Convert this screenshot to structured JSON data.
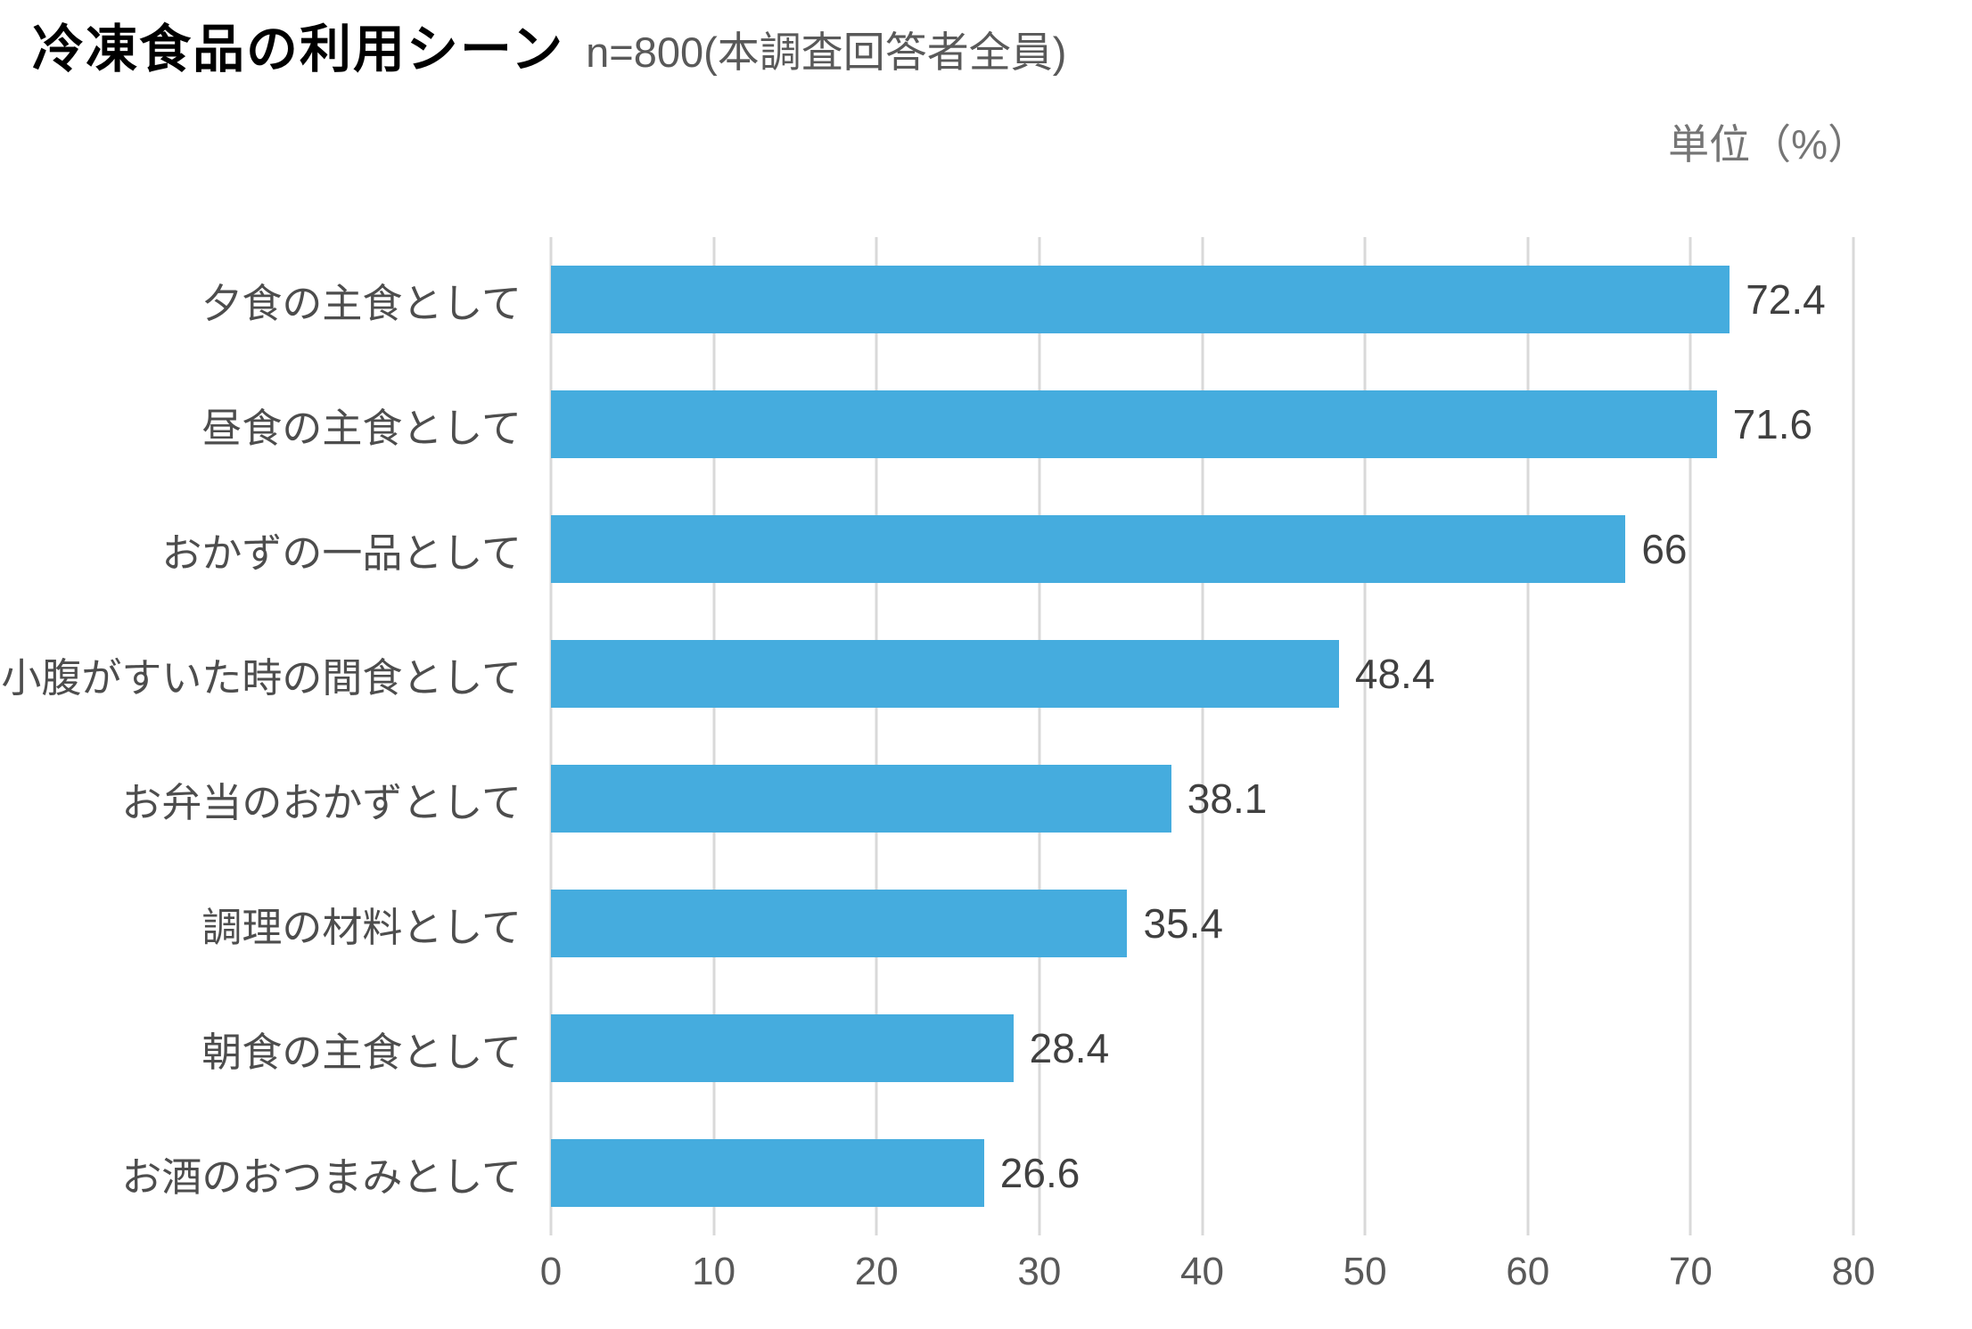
{
  "header": {
    "title": "冷凍食品の利用シーン",
    "subtitle": "n=800(本調査回答者全員)",
    "unit_label": "単位（%）"
  },
  "colors": {
    "bar": "#45ACDE",
    "grid": "#D9D9D9",
    "title_text": "#000000",
    "subtitle_text": "#595959",
    "category_text": "#4D4D4D",
    "value_text": "#404040",
    "tick_text": "#595959",
    "background": "#FFFFFF"
  },
  "chart_data": {
    "type": "bar",
    "orientation": "horizontal",
    "title": "冷凍食品の利用シーン",
    "subtitle": "n=800(本調査回答者全員)",
    "unit": "%",
    "categories": [
      "夕食の主食として",
      "昼食の主食として",
      "おかずの一品として",
      "小腹がすいた時の間食として",
      "お弁当のおかずとして",
      "調理の材料として",
      "朝食の主食として",
      "お酒のおつまみとして"
    ],
    "values": [
      72.4,
      71.6,
      66,
      48.4,
      38.1,
      35.4,
      28.4,
      26.6
    ],
    "value_labels": [
      "72.4",
      "71.6",
      "66",
      "48.4",
      "38.1",
      "35.4",
      "28.4",
      "26.6"
    ],
    "xlabel": "",
    "ylabel": "",
    "xlim": [
      0,
      80
    ],
    "xticks": [
      0,
      10,
      20,
      30,
      40,
      50,
      60,
      70,
      80
    ],
    "grid": "vertical-only",
    "legend": "none",
    "value_labels_position": "right-of-bar"
  }
}
